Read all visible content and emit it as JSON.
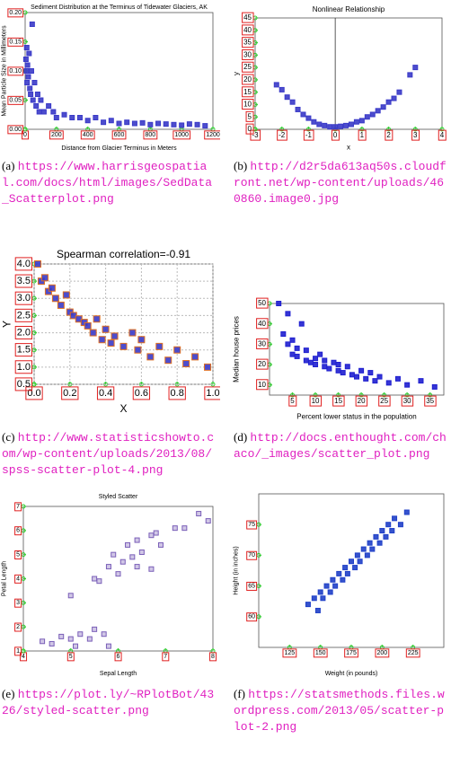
{
  "chart_data": [
    {
      "type": "scatter",
      "title": "Sediment Distribution at the Terminus of Tidewater Glaciers, AK",
      "xlabel": "Distance from Glacier Terminus in Meters",
      "ylabel": "Mean Particle Size in Millimeters",
      "color": "#3a3ac8",
      "grid": false,
      "origin_axes": false,
      "xlim": [
        0,
        1200
      ],
      "ylim": [
        0,
        0.2
      ],
      "xticks": [
        0,
        200,
        400,
        600,
        800,
        1000,
        1200
      ],
      "yticks": [
        {
          "value": 0,
          "label": "0.00"
        },
        0.05,
        {
          "value": 0.1,
          "label": "0.10"
        },
        0.15,
        {
          "value": 0.2,
          "label": "0.20"
        }
      ],
      "x": [
        5,
        8,
        10,
        12,
        15,
        20,
        25,
        30,
        35,
        40,
        45,
        50,
        60,
        70,
        80,
        90,
        100,
        120,
        150,
        180,
        200,
        250,
        300,
        350,
        400,
        450,
        500,
        550,
        600,
        650,
        700,
        750,
        800,
        850,
        900,
        950,
        1000,
        1050,
        1100,
        1150
      ],
      "values": [
        0.12,
        0.1,
        0.14,
        0.08,
        0.11,
        0.09,
        0.13,
        0.07,
        0.06,
        0.1,
        0.18,
        0.05,
        0.08,
        0.04,
        0.06,
        0.03,
        0.05,
        0.03,
        0.04,
        0.03,
        0.02,
        0.025,
        0.02,
        0.02,
        0.015,
        0.02,
        0.012,
        0.015,
        0.01,
        0.012,
        0.01,
        0.011,
        0.008,
        0.01,
        0.009,
        0.008,
        0.007,
        0.009,
        0.008,
        0.006
      ]
    },
    {
      "type": "scatter",
      "title": "Nonlinear Relationship",
      "xlabel": "x",
      "ylabel": "y",
      "color": "#3a3ac8",
      "grid": false,
      "origin_axes": true,
      "xlim": [
        -3,
        4
      ],
      "ylim": [
        0,
        45
      ],
      "xticks": [
        -3,
        -2,
        -1,
        0,
        1,
        2,
        3,
        4
      ],
      "yticks": [
        0,
        5,
        10,
        15,
        20,
        25,
        30,
        35,
        40,
        45
      ],
      "x": [
        -2.2,
        -2,
        -1.8,
        -1.6,
        -1.4,
        -1.2,
        -1,
        -0.8,
        -0.6,
        -0.4,
        -0.2,
        0,
        0.2,
        0.4,
        0.6,
        0.8,
        1,
        1.2,
        1.4,
        1.6,
        1.8,
        2,
        2.2,
        2.4,
        2.8,
        3
      ],
      "values": [
        18,
        16,
        13,
        11,
        8,
        6,
        4.5,
        3,
        2,
        1.5,
        1,
        1,
        1.2,
        1.5,
        2,
        3,
        3.5,
        5,
        6,
        7.5,
        9,
        11,
        12.5,
        15,
        22,
        25
      ]
    },
    {
      "type": "scatter",
      "title": "Spearman correlation=-0.91",
      "xlabel": "X",
      "ylabel": "Y",
      "color": "#3a3ac8",
      "grid": true,
      "origin_axes": false,
      "xlim": [
        0,
        1
      ],
      "ylim": [
        0.5,
        4
      ],
      "xticks": [
        {
          "value": 0,
          "label": "0.0"
        },
        0.2,
        0.4,
        0.6,
        0.8,
        {
          "value": 1,
          "label": "1.0"
        }
      ],
      "yticks": [
        0.5,
        {
          "value": 1,
          "label": "1.0"
        },
        1.5,
        {
          "value": 2,
          "label": "2.0"
        },
        2.5,
        {
          "value": 3,
          "label": "3.0"
        },
        3.5,
        {
          "value": 4,
          "label": "4.0"
        }
      ],
      "x": [
        0.02,
        0.04,
        0.06,
        0.08,
        0.1,
        0.12,
        0.15,
        0.18,
        0.2,
        0.22,
        0.25,
        0.28,
        0.3,
        0.33,
        0.35,
        0.38,
        0.4,
        0.43,
        0.45,
        0.5,
        0.55,
        0.58,
        0.6,
        0.65,
        0.7,
        0.75,
        0.8,
        0.85,
        0.9,
        0.97
      ],
      "values": [
        4.0,
        3.5,
        3.6,
        3.2,
        3.3,
        3.0,
        2.8,
        3.1,
        2.6,
        2.5,
        2.4,
        2.3,
        2.2,
        2.0,
        2.4,
        1.8,
        2.1,
        1.7,
        1.9,
        1.6,
        2.0,
        1.5,
        1.8,
        1.3,
        1.6,
        1.2,
        1.5,
        1.1,
        1.3,
        1.0
      ]
    },
    {
      "type": "scatter",
      "xlabel": "Percent lower status in the population",
      "ylabel": "Median house prices",
      "color": "#1f1fd0",
      "grid": false,
      "origin_axes": false,
      "xlim": [
        0,
        38
      ],
      "ylim": [
        5,
        50
      ],
      "xticks": [
        5,
        10,
        15,
        20,
        25,
        30,
        35
      ],
      "yticks": [
        10,
        20,
        30,
        40,
        50
      ],
      "x": [
        2,
        3,
        4,
        4,
        5,
        5,
        6,
        6,
        7,
        8,
        8,
        9,
        10,
        10,
        11,
        12,
        12,
        13,
        14,
        15,
        15,
        16,
        17,
        18,
        19,
        20,
        21,
        22,
        23,
        24,
        26,
        28,
        30,
        33,
        36
      ],
      "values": [
        50,
        35,
        45,
        30,
        32,
        25,
        28,
        24,
        40,
        22,
        27,
        21,
        23,
        20,
        25,
        19,
        22,
        18,
        21,
        17,
        20,
        16,
        19,
        15,
        14,
        17,
        13,
        16,
        12,
        14,
        11,
        13,
        10,
        12,
        9
      ]
    },
    {
      "type": "scatter",
      "title": "Styled Scatter",
      "xlabel": "Sepal Length",
      "ylabel": "Petal Length",
      "color": "#7a5fb8",
      "grid": false,
      "origin_axes": false,
      "xlim": [
        4,
        8
      ],
      "ylim": [
        1,
        7
      ],
      "xticks": [
        4,
        5,
        6,
        7,
        8
      ],
      "yticks": [
        1,
        2,
        3,
        4,
        5,
        6,
        7
      ],
      "x": [
        4.4,
        4.6,
        4.8,
        5.0,
        5.1,
        5.2,
        5.4,
        5.5,
        5.7,
        5.8,
        5.0,
        5.5,
        5.6,
        5.8,
        6.0,
        6.1,
        6.3,
        6.4,
        6.5,
        6.7,
        5.9,
        6.2,
        6.4,
        6.7,
        6.9,
        7.2,
        7.4,
        7.7,
        7.9,
        6.8
      ],
      "values": [
        1.4,
        1.3,
        1.6,
        1.5,
        1.2,
        1.7,
        1.5,
        1.9,
        1.7,
        1.2,
        3.3,
        4.0,
        3.9,
        4.5,
        4.2,
        4.7,
        4.9,
        4.5,
        5.1,
        4.4,
        5.0,
        5.4,
        5.6,
        5.8,
        5.4,
        6.1,
        6.1,
        6.7,
        6.4,
        5.9
      ]
    },
    {
      "type": "scatter",
      "xlabel": "Weight (in pounds)",
      "ylabel": "Height (in inches)",
      "color": "#2040c8",
      "grid": false,
      "origin_axes": false,
      "xlim": [
        100,
        250
      ],
      "ylim": [
        55,
        80
      ],
      "xticks": [
        125,
        150,
        175,
        200,
        225
      ],
      "yticks": [
        60,
        65,
        70,
        75
      ],
      "x": [
        140,
        145,
        148,
        150,
        152,
        155,
        158,
        160,
        162,
        165,
        168,
        170,
        172,
        175,
        178,
        180,
        182,
        185,
        188,
        190,
        192,
        195,
        198,
        200,
        203,
        205,
        208,
        210,
        215,
        220
      ],
      "values": [
        62,
        63,
        61,
        64,
        63,
        65,
        64,
        66,
        65,
        67,
        66,
        68,
        67,
        69,
        68,
        70,
        69,
        71,
        70,
        72,
        71,
        73,
        72,
        74,
        73,
        75,
        74,
        76,
        75,
        77
      ]
    }
  ],
  "captions": [
    {
      "label": "(a)",
      "url": "https://www.harrisgeospatial.com/docs/html/images/SedData_Scatterplot.png"
    },
    {
      "label": "(b)",
      "url": "http://d2r5da613aq50s.cloudfront.net/wp-content/uploads/460860.image0.jpg"
    },
    {
      "label": "(c)",
      "url": "http://www.statisticshowto.com/wp-content/uploads/2013/08/spss-scatter-plot-4.png"
    },
    {
      "label": "(d)",
      "url": "http://docs.enthought.com/chaco/_images/scatter_plot.png"
    },
    {
      "label": "(e)",
      "url": "https://plot.ly/~RPlotBot/4326/styled-scatter.png"
    },
    {
      "label": "(f)",
      "url": "https://statsmethods.files.wordpress.com/2013/05/scatter-plot-2.png"
    }
  ]
}
